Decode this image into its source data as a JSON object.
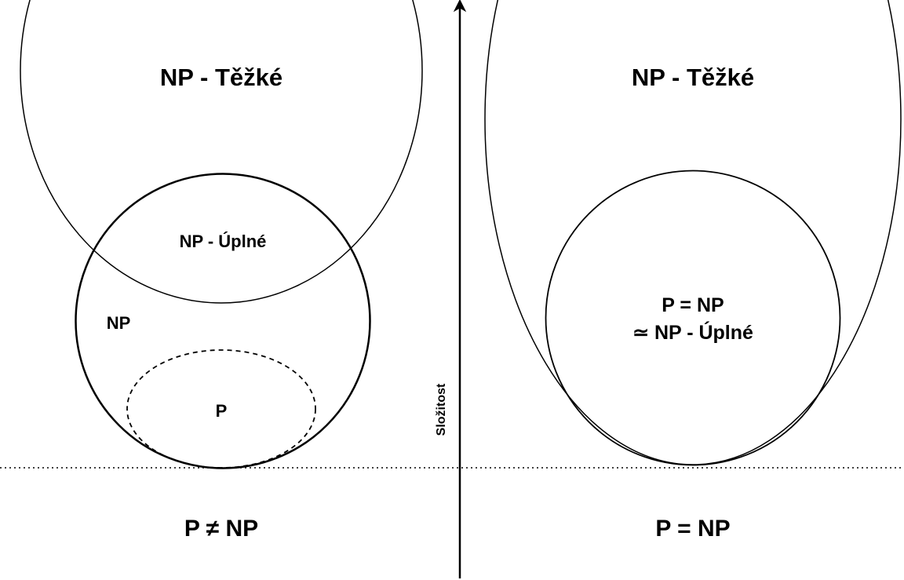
{
  "left_panel": {
    "np_hard_label": "NP - Těžké",
    "np_complete_label": "NP - Úplné",
    "np_label": "NP",
    "p_label": "P",
    "caption": "P ≠ NP"
  },
  "right_panel": {
    "np_hard_label": "NP - Těžké",
    "center_line1": "P = NP",
    "center_line2": "≃ NP - Úplné",
    "caption": "P = NP"
  },
  "axis": {
    "label": "Složitost"
  }
}
